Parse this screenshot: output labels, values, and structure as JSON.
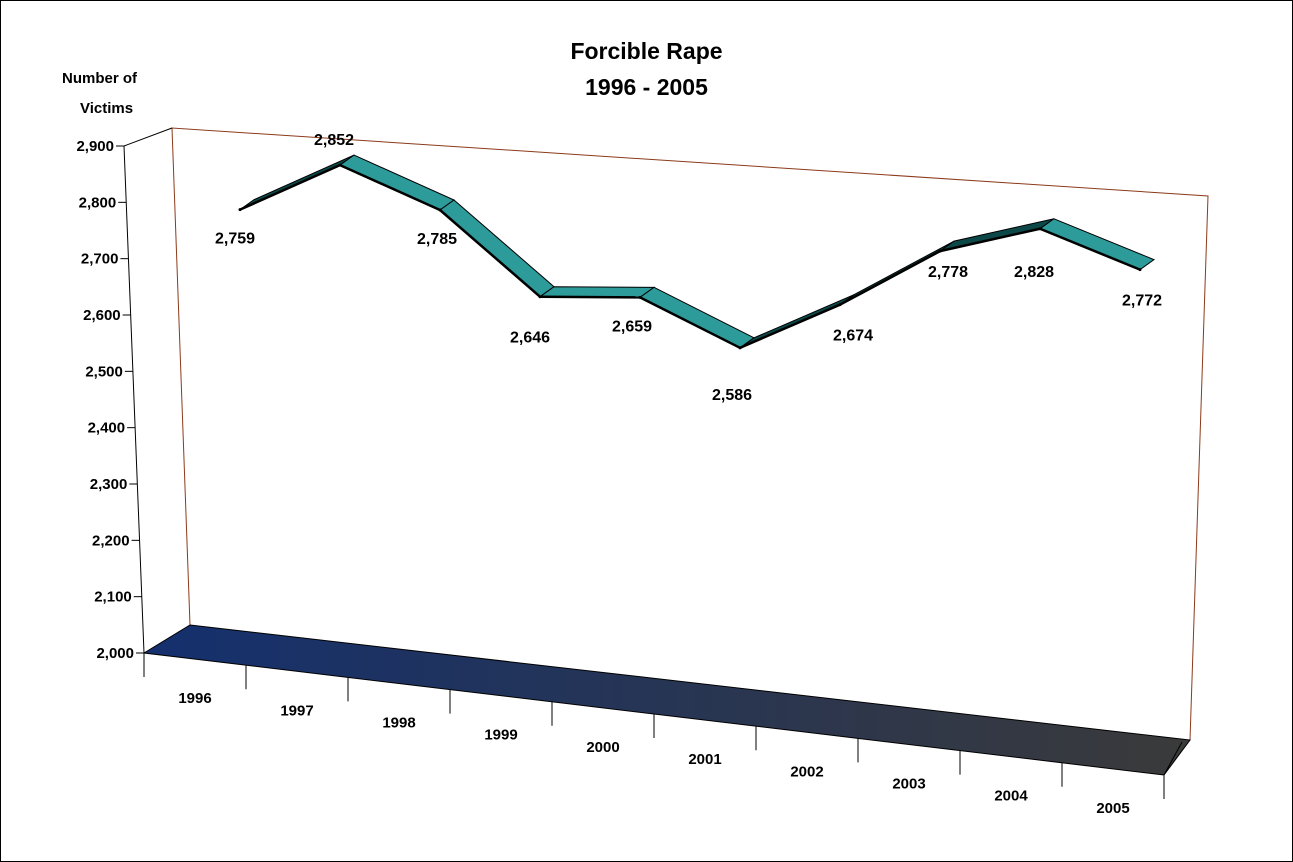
{
  "chart_data": {
    "type": "line",
    "title_line1": "Forcible Rape",
    "title_line2": "1996 - 2005",
    "ylabel_line1": "Number of",
    "ylabel_line2": "Victims",
    "xlabel": "",
    "categories": [
      "1996",
      "1997",
      "1998",
      "1999",
      "2000",
      "2001",
      "2002",
      "2003",
      "2004",
      "2005"
    ],
    "values": [
      2759,
      2852,
      2785,
      2646,
      2659,
      2586,
      2674,
      2778,
      2828,
      2772
    ],
    "data_labels": [
      "2,759",
      "2,852",
      "2,785",
      "2,646",
      "2,659",
      "2,586",
      "2,674",
      "2,778",
      "2,828",
      "2,772"
    ],
    "yticks": [
      2000,
      2100,
      2200,
      2300,
      2400,
      2500,
      2600,
      2700,
      2800,
      2900
    ],
    "ytick_labels": [
      "2,000",
      "2,100",
      "2,200",
      "2,300",
      "2,400",
      "2,500",
      "2,600",
      "2,700",
      "2,800",
      "2,900"
    ],
    "ylim": [
      2000,
      2900
    ],
    "grid": false,
    "legend": "none",
    "colors": {
      "ribbon_top": "#2E9B9B",
      "ribbon_side": "#0D4848",
      "floor_start": "#14306E",
      "floor_end": "#3A3A3A",
      "wall_edge": "#8B3A1A"
    }
  }
}
